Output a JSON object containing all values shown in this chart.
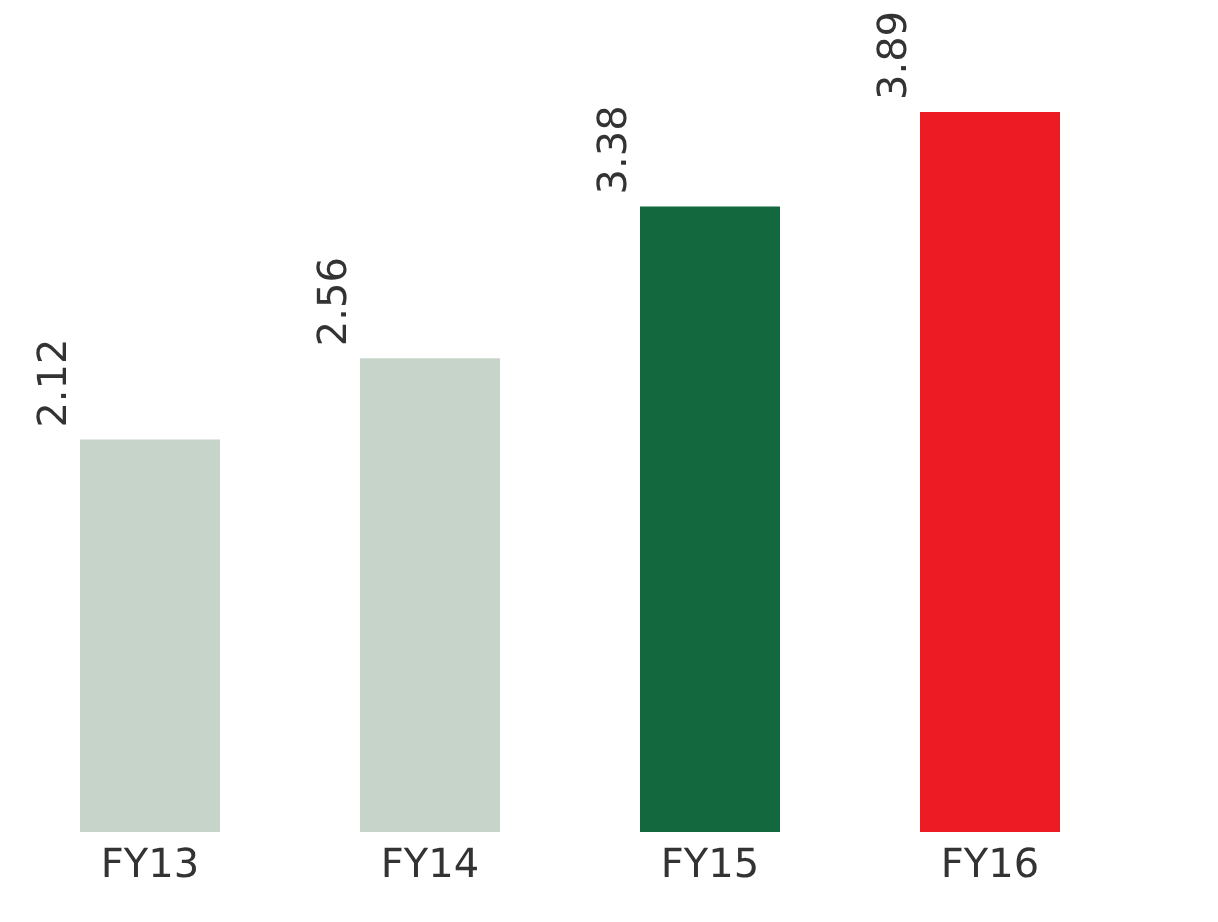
{
  "chart_data": {
    "type": "bar",
    "categories": [
      "FY13",
      "FY14",
      "FY15",
      "FY16"
    ],
    "values": [
      2.12,
      2.56,
      3.38,
      3.89
    ],
    "colors": [
      "#c7d4c9",
      "#c7d4c9",
      "#13693d",
      "#ed1c24"
    ],
    "data_labels": true,
    "grid": false
  }
}
